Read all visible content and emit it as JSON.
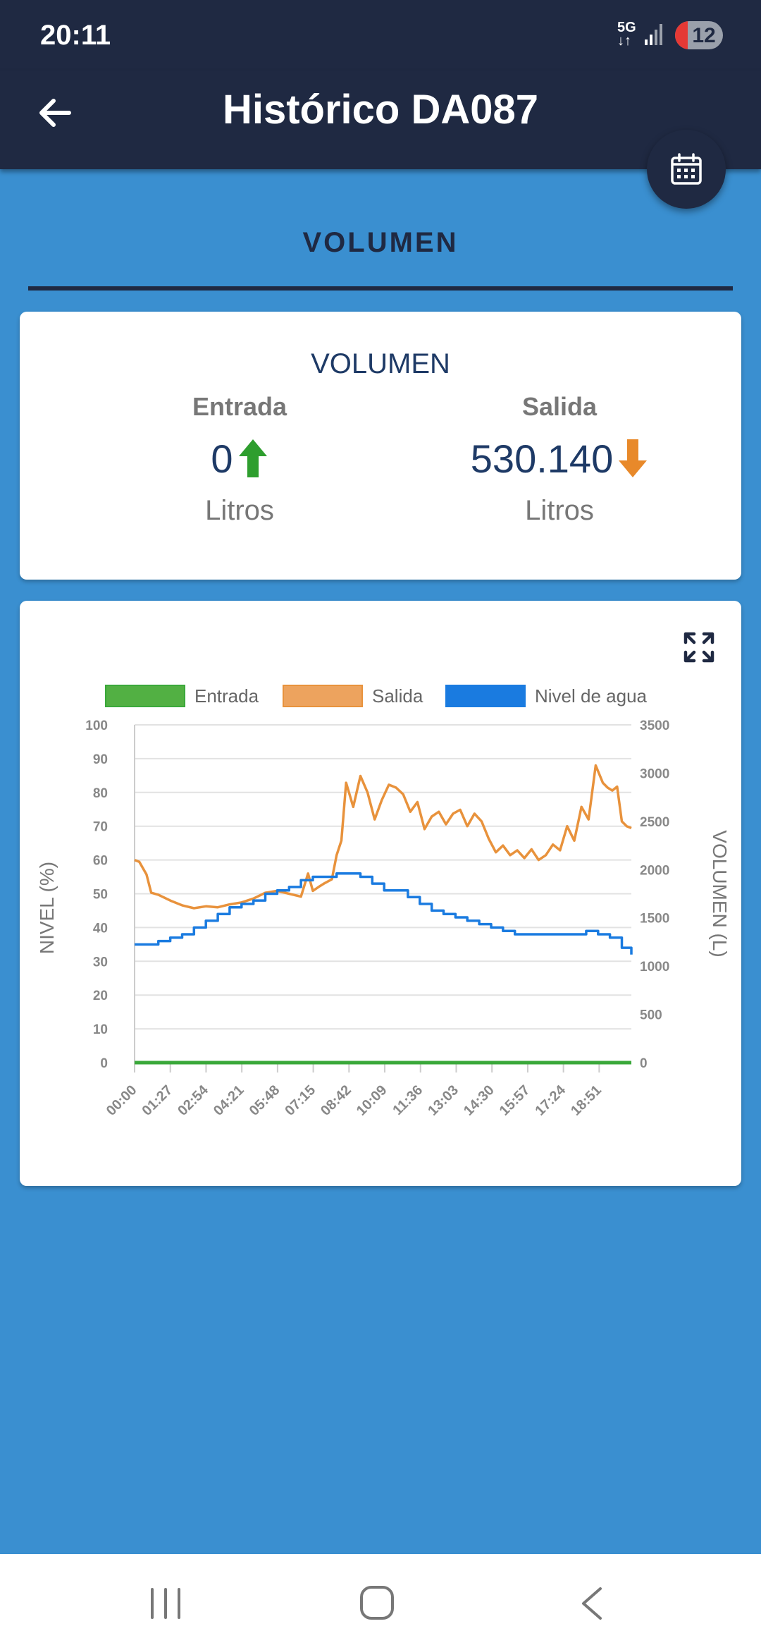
{
  "status_bar": {
    "time": "20:11",
    "network": "5G",
    "battery": "12"
  },
  "app_bar": {
    "title": "Histórico DA087"
  },
  "tab": {
    "label": "VOLUMEN"
  },
  "summary": {
    "title": "VOLUMEN",
    "entrada": {
      "label": "Entrada",
      "value": "0",
      "unit": "Litros"
    },
    "salida": {
      "label": "Salida",
      "value": "530.140",
      "unit": "Litros"
    }
  },
  "colors": {
    "entrada": "#3aa83a",
    "salida": "#e8923c",
    "nivel": "#1a7be0",
    "appbar": "#1f2942"
  },
  "chart_data": {
    "type": "line",
    "legend": [
      "Entrada",
      "Salida",
      "Nivel de agua"
    ],
    "legend_position": "top",
    "ylabel": "NIVEL (%)",
    "y2label": "VOLUMEN (L)",
    "ylim": [
      0,
      100
    ],
    "y2lim": [
      0,
      3500
    ],
    "yticks": [
      "100",
      "90",
      "80",
      "70",
      "60",
      "50",
      "40",
      "30",
      "20",
      "10",
      "0"
    ],
    "y2ticks": [
      "3500",
      "3000",
      "2500",
      "2000",
      "1500",
      "1000",
      "500",
      "0"
    ],
    "xticks": [
      "00:00",
      "01:27",
      "02:54",
      "04:21",
      "05:48",
      "07:15",
      "08:42",
      "10:09",
      "11:36",
      "13:03",
      "14:30",
      "15:57",
      "17:24",
      "18:51"
    ],
    "grid": true,
    "series": [
      {
        "name": "Entrada",
        "axis": "right",
        "x_hours": [
          0,
          20.9
        ],
        "values": [
          0,
          0
        ]
      },
      {
        "name": "Salida",
        "axis": "right",
        "x_hours": [
          0,
          0.2,
          0.5,
          0.7,
          1.0,
          1.5,
          2.0,
          2.5,
          3.0,
          3.5,
          4.0,
          4.5,
          5.0,
          5.5,
          6.0,
          6.5,
          7.0,
          7.3,
          7.5,
          7.8,
          8.0,
          8.3,
          8.5,
          8.7,
          8.9,
          9.2,
          9.5,
          9.8,
          10.1,
          10.4,
          10.7,
          11.0,
          11.3,
          11.6,
          11.9,
          12.2,
          12.5,
          12.8,
          13.1,
          13.4,
          13.7,
          14.0,
          14.3,
          14.6,
          14.9,
          15.2,
          15.5,
          15.8,
          16.1,
          16.4,
          16.7,
          17.0,
          17.3,
          17.6,
          17.9,
          18.2,
          18.5,
          18.8,
          19.1,
          19.4,
          19.7,
          19.9,
          20.1,
          20.3,
          20.5,
          20.7,
          20.9
        ],
        "values": [
          2100,
          2080,
          1950,
          1760,
          1740,
          1680,
          1630,
          1600,
          1620,
          1610,
          1640,
          1660,
          1700,
          1760,
          1780,
          1750,
          1720,
          1960,
          1780,
          1830,
          1860,
          1900,
          2150,
          2300,
          2900,
          2650,
          2970,
          2800,
          2520,
          2720,
          2880,
          2850,
          2780,
          2600,
          2700,
          2420,
          2550,
          2600,
          2470,
          2580,
          2620,
          2450,
          2580,
          2500,
          2320,
          2180,
          2250,
          2150,
          2200,
          2120,
          2210,
          2100,
          2150,
          2260,
          2200,
          2450,
          2300,
          2650,
          2520,
          3080,
          2900,
          2850,
          2820,
          2860,
          2500,
          2450,
          2430
        ]
      },
      {
        "name": "Nivel de agua",
        "axis": "left",
        "x_hours": [
          0,
          0.5,
          1.0,
          1.5,
          2.0,
          2.5,
          3.0,
          3.5,
          4.0,
          4.5,
          5.0,
          5.5,
          6.0,
          6.5,
          7.0,
          7.5,
          8.0,
          8.5,
          9.0,
          9.5,
          10.0,
          10.5,
          11.0,
          11.5,
          12.0,
          12.5,
          13.0,
          13.5,
          14.0,
          14.5,
          15.0,
          15.5,
          16.0,
          16.5,
          17.0,
          17.5,
          18.0,
          18.5,
          19.0,
          19.5,
          20.0,
          20.5,
          20.9
        ],
        "values": [
          35,
          35,
          36,
          37,
          38,
          40,
          42,
          44,
          46,
          47,
          48,
          50,
          51,
          52,
          54,
          55,
          55,
          56,
          56,
          55,
          53,
          51,
          51,
          49,
          47,
          45,
          44,
          43,
          42,
          41,
          40,
          39,
          38,
          38,
          38,
          38,
          38,
          38,
          39,
          38,
          37,
          34,
          32
        ]
      }
    ]
  }
}
